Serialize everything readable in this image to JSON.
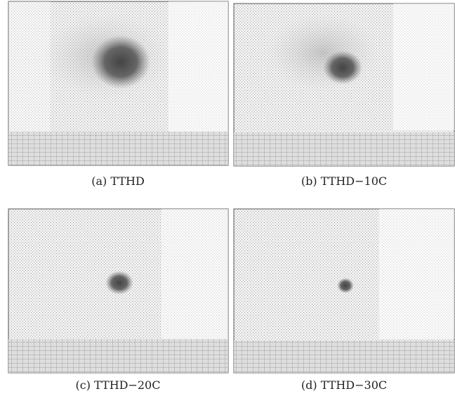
{
  "panels": [
    {
      "caption": "(a) TTHD"
    },
    {
      "caption": "(b) TTHD−10C"
    },
    {
      "caption": "(c) TTHD−20C"
    },
    {
      "caption": "(d) TTHD−30C"
    }
  ]
}
